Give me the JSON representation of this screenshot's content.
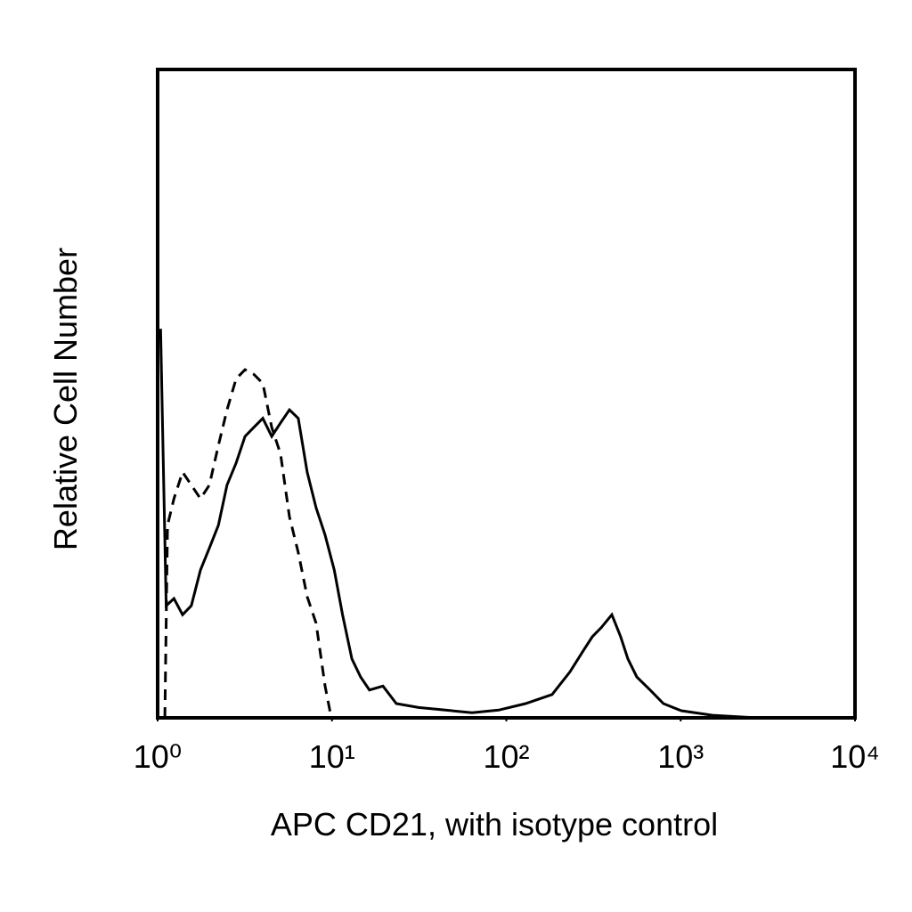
{
  "chart_data": {
    "type": "histogram-line",
    "xlabel": "APC CD21, with isotype control",
    "ylabel": "Relative Cell Number",
    "xscale": "log",
    "xlim": [
      1,
      10000
    ],
    "xticks": [
      {
        "value": 1,
        "label": "10⁰"
      },
      {
        "value": 10,
        "label": "10¹"
      },
      {
        "value": 100,
        "label": "10²"
      },
      {
        "value": 1000,
        "label": "10³"
      },
      {
        "value": 10000,
        "label": "10⁴"
      }
    ],
    "ylim": [
      0,
      100
    ],
    "series": [
      {
        "color": "#000000",
        "linestyle": "solid",
        "x": [
          1.04,
          1.12,
          1.24,
          1.39,
          1.56,
          1.76,
          1.98,
          2.23,
          2.5,
          2.82,
          3.17,
          3.56,
          4.01,
          4.51,
          5.07,
          5.7,
          6.41,
          7.21,
          8.11,
          9.13,
          10.3,
          11.5,
          13,
          14.6,
          16.4,
          19.6,
          23.4,
          31.4,
          44.7,
          63.6,
          90.4,
          129,
          183,
          232,
          277,
          311,
          350,
          403,
          453,
          498,
          560,
          668,
          796,
          1009,
          1523,
          2742,
          9440
        ],
        "values": [
          60,
          17.3,
          18.4,
          15.9,
          17.3,
          22.8,
          26.2,
          29.7,
          35.9,
          39.3,
          43.4,
          44.8,
          46.2,
          43.4,
          45.5,
          47.5,
          46.2,
          37.9,
          32.4,
          28.2,
          22.8,
          15.9,
          9.1,
          6.3,
          4.3,
          4.9,
          2.2,
          1.6,
          1.2,
          0.8,
          1.2,
          2.2,
          3.6,
          7.1,
          10.4,
          12.5,
          13.9,
          15.9,
          12.5,
          9.1,
          6.3,
          4.3,
          2.2,
          1.1,
          0.4,
          0,
          0
        ]
      },
      {
        "color": "#000000",
        "linestyle": "dashed",
        "x": [
          1.1,
          1.14,
          1.24,
          1.39,
          1.56,
          1.76,
          1.98,
          2.23,
          2.5,
          2.82,
          3.17,
          3.56,
          4.01,
          4.51,
          5.07,
          5.7,
          6.41,
          7.21,
          8.11,
          9.13,
          9.91,
          9440
        ],
        "values": [
          0,
          29.7,
          33.8,
          37.9,
          35.9,
          33.8,
          35.9,
          42,
          47.5,
          52.3,
          53.7,
          53,
          51.6,
          44.8,
          40.7,
          31,
          25.5,
          18.7,
          14.6,
          4.9,
          0,
          0
        ]
      }
    ]
  }
}
